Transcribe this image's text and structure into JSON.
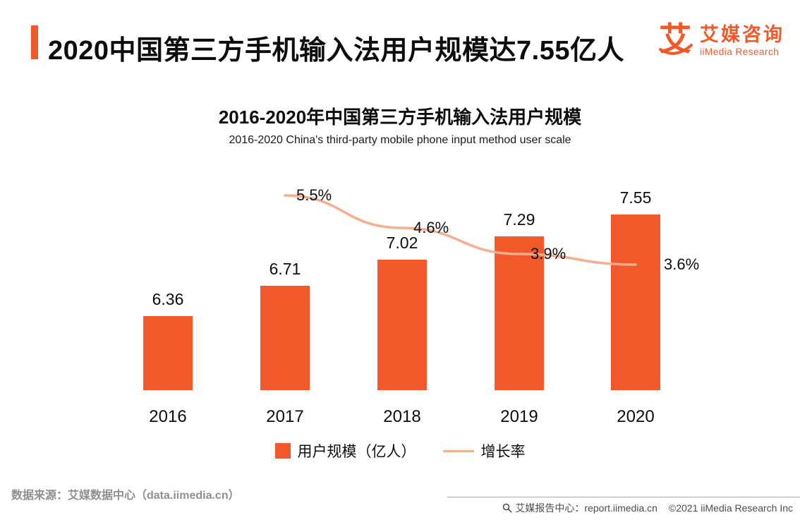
{
  "header": {
    "title": "2020中国第三方手机输入法用户规模达7.55亿人",
    "logo": {
      "glyph": "艾",
      "brand_cn": "艾媒咨询",
      "brand_en": "iiMedia Research"
    }
  },
  "chart": {
    "title_cn": "2016-2020年中国第三方手机输入法用户规模",
    "title_en": "2016-2020 China's third-party mobile phone input method user scale"
  },
  "chart_data": {
    "type": "bar+line",
    "categories": [
      "2016",
      "2017",
      "2018",
      "2019",
      "2020"
    ],
    "series": [
      {
        "name": "用户规模（亿人）",
        "type": "bar",
        "values": [
          6.36,
          6.71,
          7.02,
          7.29,
          7.55
        ],
        "labels": [
          "6.36",
          "6.71",
          "7.02",
          "7.29",
          "7.55"
        ],
        "color": "#F1592B"
      },
      {
        "name": "增长率",
        "type": "line",
        "values": [
          null,
          5.5,
          4.6,
          3.9,
          3.6
        ],
        "labels": [
          "",
          "5.5%",
          "4.6%",
          "3.9%",
          "3.6%"
        ],
        "color": "#F6AE8C"
      }
    ],
    "title": "2016-2020年中国第三方手机输入法用户规模",
    "xlabel": "",
    "ylabel": "",
    "legend_position": "bottom",
    "grid": false
  },
  "footer": {
    "source": "数据来源：艾媒数据中心（data.iimedia.cn）",
    "report_center": "艾媒报告中心：report.iimedia.cn",
    "copyright": "©2021  iiMedia Research Inc"
  },
  "colors": {
    "accent": "#F1592B",
    "line": "#F6AE8C"
  }
}
